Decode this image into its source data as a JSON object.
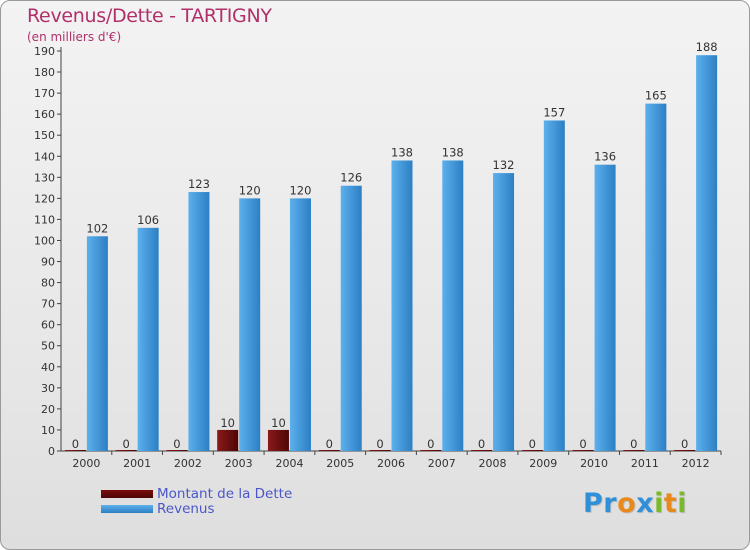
{
  "page": {
    "title": "Revenus/Dette - TARTIGNY",
    "subtitle": "(en milliers d'€)"
  },
  "chart_data": {
    "type": "bar",
    "title": "Revenus/Dette - TARTIGNY",
    "ylabel": "(en milliers d'€)",
    "xlabel": "",
    "categories": [
      "2000",
      "2001",
      "2002",
      "2003",
      "2004",
      "2005",
      "2006",
      "2007",
      "2008",
      "2009",
      "2010",
      "2011",
      "2012"
    ],
    "series": [
      {
        "name": "Montant de la Dette",
        "color": "#6b0a0a",
        "values": [
          0,
          0,
          0,
          10,
          10,
          0,
          0,
          0,
          0,
          0,
          0,
          0,
          0
        ]
      },
      {
        "name": "Revenus",
        "color": "#3d94d6",
        "values": [
          102,
          106,
          123,
          120,
          120,
          126,
          138,
          138,
          132,
          157,
          136,
          165,
          188
        ]
      }
    ],
    "ylim": [
      0,
      190
    ],
    "ytick_step": 10,
    "grid": false,
    "legend": "bottom-left"
  },
  "logo": {
    "letters": [
      {
        "ch": "P",
        "color": "#2f8fd8"
      },
      {
        "ch": "r",
        "color": "#2f8fd8"
      },
      {
        "ch": "o",
        "color": "#e8891c"
      },
      {
        "ch": "x",
        "color": "#2f8fd8"
      },
      {
        "ch": "i",
        "color": "#7ab929"
      },
      {
        "ch": "t",
        "color": "#e8891c"
      },
      {
        "ch": "i",
        "color": "#7ab929"
      }
    ]
  }
}
